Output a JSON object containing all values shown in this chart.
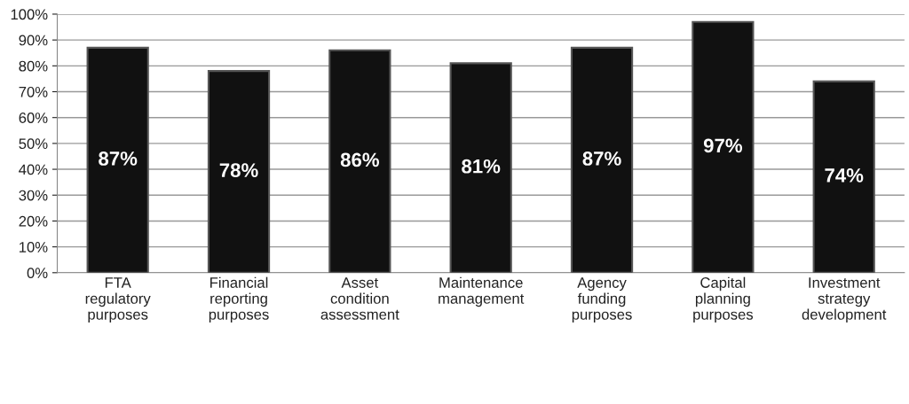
{
  "chart_data": {
    "type": "bar",
    "categories": [
      "FTA\nregulatory\npurposes",
      "Financial\nreporting\npurposes",
      "Asset\ncondition\nassessment",
      "Maintenance\nmanagement",
      "Agency\nfunding\npurposes",
      "Capital\nplanning\npurposes",
      "Investment\nstrategy\ndevelopment"
    ],
    "values": [
      87,
      78,
      86,
      81,
      87,
      97,
      74
    ],
    "value_labels": [
      "87%",
      "78%",
      "86%",
      "81%",
      "87%",
      "97%",
      "74%"
    ],
    "color": "#111111",
    "ylim": [
      0,
      100
    ],
    "yticks": [
      {
        "value": 0,
        "label": "0%"
      },
      {
        "value": 10,
        "label": "10%"
      },
      {
        "value": 20,
        "label": "20%"
      },
      {
        "value": 30,
        "label": "30%"
      },
      {
        "value": 40,
        "label": "40%"
      },
      {
        "value": 50,
        "label": "50%"
      },
      {
        "value": 60,
        "label": "60%"
      },
      {
        "value": 70,
        "label": "70%"
      },
      {
        "value": 80,
        "label": "80%"
      },
      {
        "value": 90,
        "label": "90%"
      },
      {
        "value": 100,
        "label": "100%"
      }
    ],
    "grid": "y"
  }
}
